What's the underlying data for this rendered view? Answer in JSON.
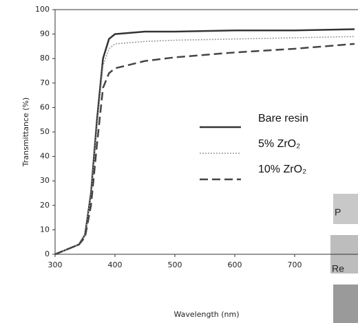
{
  "chart_data": {
    "type": "line",
    "x_label": "Wavelength (nm)",
    "y_label": "Transmittance (%)",
    "x": [
      300,
      320,
      340,
      350,
      360,
      370,
      380,
      390,
      400,
      450,
      500,
      600,
      700,
      800
    ],
    "series": [
      {
        "name": "Bare resin",
        "color": "#333333",
        "dash": "solid",
        "values": [
          0,
          2,
          4,
          8,
          25,
          55,
          80,
          88,
          90,
          91,
          91,
          91.5,
          91.5,
          92
        ]
      },
      {
        "name": "5% ZrO₂",
        "color": "#999999",
        "dash": "dotted",
        "values": [
          0,
          2,
          4,
          8,
          24,
          52,
          77,
          84,
          86,
          87,
          87.5,
          88,
          88.5,
          89
        ]
      },
      {
        "name": "10% ZrO₂",
        "color": "#444444",
        "dash": "dashed",
        "values": [
          0,
          2,
          4,
          7,
          20,
          45,
          68,
          74,
          76,
          79,
          80.5,
          82.5,
          84,
          86
        ]
      }
    ],
    "xlim": [
      300,
      800
    ],
    "ylim": [
      0,
      100
    ],
    "xticks": [
      300,
      400,
      500,
      600,
      700
    ],
    "yticks": [
      0,
      10,
      20,
      30,
      40,
      50,
      60,
      70,
      80,
      90,
      100
    ],
    "annotations": [
      "P",
      "Re"
    ]
  }
}
